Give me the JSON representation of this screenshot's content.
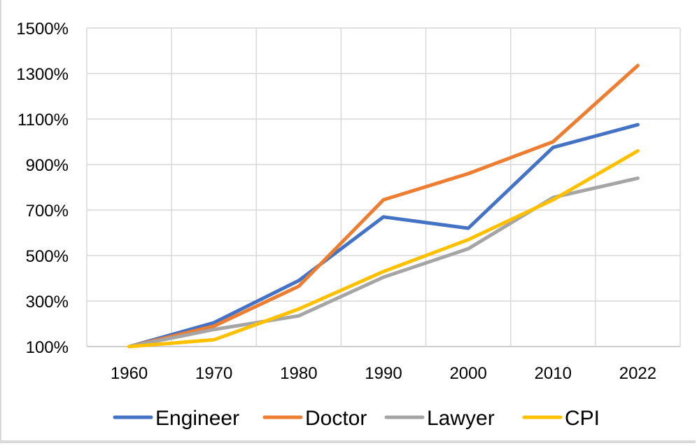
{
  "chart_data": {
    "type": "line",
    "title": "",
    "xlabel": "",
    "ylabel": "",
    "categories": [
      "1960",
      "1970",
      "1980",
      "1990",
      "2000",
      "2010",
      "2022"
    ],
    "ylim": [
      100,
      1500
    ],
    "y_ticks": [
      "100%",
      "300%",
      "500%",
      "700%",
      "900%",
      "1100%",
      "1300%",
      "1500%"
    ],
    "grid": true,
    "legend_position": "bottom",
    "series": [
      {
        "name": "Engineer",
        "color": "#4472c4",
        "values": [
          100,
          205,
          390,
          670,
          620,
          975,
          1075
        ]
      },
      {
        "name": "Doctor",
        "color": "#ed7d31",
        "values": [
          100,
          190,
          365,
          745,
          860,
          1000,
          1335
        ]
      },
      {
        "name": "Lawyer",
        "color": "#a5a5a5",
        "values": [
          100,
          175,
          235,
          405,
          530,
          755,
          840
        ]
      },
      {
        "name": "CPI",
        "color": "#ffc000",
        "values": [
          100,
          130,
          265,
          430,
          570,
          745,
          960
        ]
      }
    ]
  }
}
